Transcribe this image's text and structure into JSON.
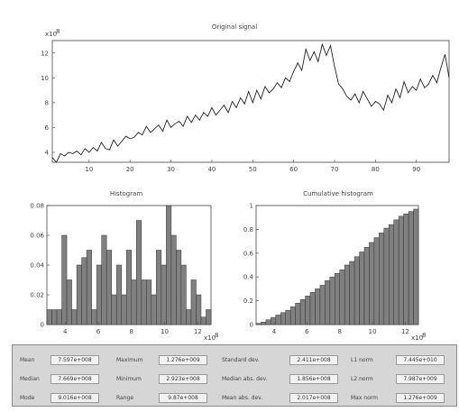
{
  "charts": {
    "signal": {
      "title": "Original signal",
      "exponent_label": "x10",
      "exponent_power": "8",
      "x_ticks": [
        "10",
        "20",
        "30",
        "40",
        "50",
        "60",
        "70",
        "80",
        "90"
      ],
      "y_ticks": [
        "4",
        "6",
        "8",
        "10",
        "12"
      ]
    },
    "histogram": {
      "title": "Histogram",
      "x_ticks": [
        "4",
        "6",
        "8",
        "10",
        "12"
      ],
      "y_ticks": [
        "0",
        "0.02",
        "0.04",
        "0.06",
        "0.08"
      ],
      "exponent_label": "x10",
      "exponent_power": "8"
    },
    "cumulative": {
      "title": "Cumulative histogram",
      "x_ticks": [
        "4",
        "6",
        "8",
        "10",
        "12"
      ],
      "y_ticks": [
        "0",
        "0.2",
        "0.4",
        "0.6",
        "0.8",
        "1"
      ],
      "exponent_label": "x10",
      "exponent_power": "8"
    }
  },
  "chart_data": [
    {
      "type": "line",
      "title": "Original signal",
      "x": [
        1,
        2,
        3,
        4,
        5,
        6,
        7,
        8,
        9,
        10,
        11,
        12,
        13,
        14,
        15,
        16,
        17,
        18,
        19,
        20,
        21,
        22,
        23,
        24,
        25,
        26,
        27,
        28,
        29,
        30,
        31,
        32,
        33,
        34,
        35,
        36,
        37,
        38,
        39,
        40,
        41,
        42,
        43,
        44,
        45,
        46,
        47,
        48,
        49,
        50,
        51,
        52,
        53,
        54,
        55,
        56,
        57,
        58,
        59,
        60,
        61,
        62,
        63,
        64,
        65,
        66,
        67,
        68,
        69,
        70,
        71,
        72,
        73,
        74,
        75,
        76,
        77,
        78,
        79,
        80,
        81,
        82,
        83,
        84,
        85,
        86,
        87,
        88,
        89,
        90,
        91,
        92,
        93,
        94,
        95,
        96,
        97,
        98
      ],
      "y": [
        3.6,
        3.2,
        3.9,
        3.7,
        4.0,
        3.9,
        4.1,
        3.8,
        4.3,
        4.0,
        4.4,
        4.1,
        4.8,
        4.3,
        4.2,
        5.0,
        4.5,
        4.9,
        5.3,
        5.1,
        5.2,
        5.6,
        5.4,
        6.1,
        5.6,
        5.9,
        6.2,
        5.7,
        6.6,
        6.0,
        6.3,
        6.5,
        6.1,
        6.9,
        6.4,
        7.0,
        6.6,
        7.2,
        6.9,
        7.6,
        7.0,
        7.4,
        7.8,
        7.2,
        8.1,
        7.6,
        8.4,
        7.9,
        8.9,
        8.0,
        9.0,
        8.3,
        9.3,
        8.8,
        9.1,
        9.6,
        9.2,
        10.0,
        9.7,
        10.5,
        11.2,
        10.6,
        12.3,
        11.4,
        12.1,
        11.3,
        12.7,
        11.8,
        12.6,
        10.9,
        9.5,
        9.1,
        8.5,
        8.2,
        8.7,
        8.0,
        8.9,
        8.3,
        7.7,
        8.1,
        7.9,
        7.4,
        8.6,
        8.0,
        9.1,
        8.4,
        9.7,
        8.8,
        9.3,
        9.0,
        9.9,
        9.2,
        9.5,
        10.2,
        9.6,
        10.8,
        11.9,
        10.0
      ],
      "ylim": [
        3.2,
        13
      ],
      "xlim": [
        1,
        98
      ]
    },
    {
      "type": "bar",
      "title": "Histogram",
      "x": [
        3.05,
        3.35,
        3.65,
        3.95,
        4.25,
        4.55,
        4.85,
        5.15,
        5.45,
        5.75,
        6.05,
        6.35,
        6.65,
        6.95,
        7.25,
        7.55,
        7.85,
        8.15,
        8.45,
        8.75,
        9.05,
        9.35,
        9.65,
        9.95,
        10.25,
        10.55,
        10.85,
        11.15,
        11.45,
        11.75,
        12.05,
        12.35,
        12.65
      ],
      "values": [
        0.01,
        0.01,
        0.01,
        0.06,
        0.03,
        0.01,
        0.04,
        0.045,
        0.05,
        0.01,
        0.04,
        0.06,
        0.05,
        0.02,
        0.04,
        0.02,
        0.05,
        0.03,
        0.07,
        0.03,
        0.03,
        0.02,
        0.05,
        0.04,
        0.08,
        0.06,
        0.05,
        0.04,
        0.01,
        0.03,
        0.02,
        0.005,
        0.01
      ],
      "xlim": [
        2.9,
        12.8
      ],
      "ylim": [
        0,
        0.08
      ]
    },
    {
      "type": "bar",
      "title": "Cumulative histogram",
      "x": [
        3.05,
        3.35,
        3.65,
        3.95,
        4.25,
        4.55,
        4.85,
        5.15,
        5.45,
        5.75,
        6.05,
        6.35,
        6.65,
        6.95,
        7.25,
        7.55,
        7.85,
        8.15,
        8.45,
        8.75,
        9.05,
        9.35,
        9.65,
        9.95,
        10.25,
        10.55,
        10.85,
        11.15,
        11.45,
        11.75,
        12.05,
        12.35,
        12.65
      ],
      "values": [
        0.01,
        0.02,
        0.04,
        0.06,
        0.08,
        0.1,
        0.12,
        0.15,
        0.18,
        0.21,
        0.24,
        0.27,
        0.3,
        0.33,
        0.37,
        0.4,
        0.43,
        0.46,
        0.5,
        0.53,
        0.57,
        0.61,
        0.65,
        0.69,
        0.73,
        0.77,
        0.81,
        0.84,
        0.88,
        0.91,
        0.93,
        0.95,
        0.97
      ],
      "xlim": [
        2.9,
        12.8
      ],
      "ylim": [
        0,
        1
      ]
    }
  ],
  "stats": {
    "mean_label": "Mean",
    "mean_value": "7.597e+008",
    "median_label": "Median",
    "median_value": "7.669e+008",
    "mode_label": "Mode",
    "mode_value": "9.016e+008",
    "maximum_label": "Maximum",
    "maximum_value": "1.276e+009",
    "minimum_label": "Minimum",
    "minimum_value": "2.923e+008",
    "range_label": "Range",
    "range_value": "9.87e+008",
    "std_label": "Standard dev.",
    "std_value": "2.411e+008",
    "median_abs_label": "Median abs. dev.",
    "median_abs_value": "1.856e+008",
    "mean_abs_label": "Mean abs. dev.",
    "mean_abs_value": "2.017e+008",
    "l1_label": "L1 norm",
    "l1_value": "7.445e+010",
    "l2_label": "L2 norm",
    "l2_value": "7.987e+009",
    "max_norm_label": "Max norm",
    "max_norm_value": "1.276e+009"
  },
  "colors": {
    "bar_fill": "#808080",
    "bar_stroke": "#333333",
    "line": "#222222",
    "panel_bg": "#d6d6d6"
  }
}
